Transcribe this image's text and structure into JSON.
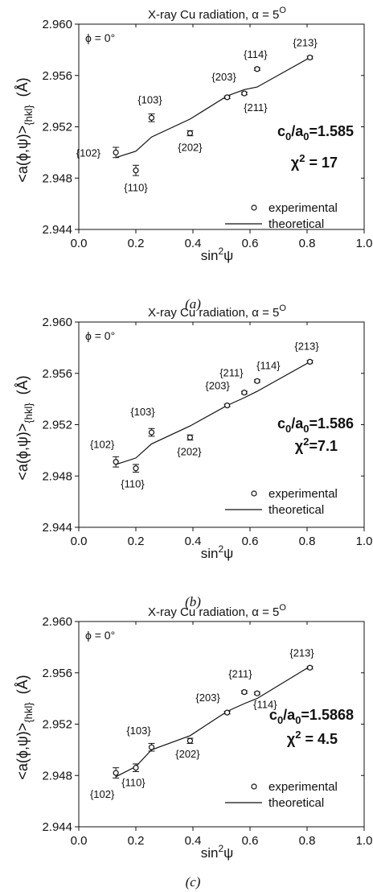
{
  "chart_data": [
    {
      "type": "scatter",
      "panel_caption": "(a)",
      "title": "X-ray Cu radiation, α = 5°",
      "title_main": "X-ray Cu radiation, α = 5",
      "title_sup": "O",
      "phi_label": "ϕ = 0°",
      "xlabel": "sin²ψ",
      "ylabel": "<a(ϕ,ψ)>{hkl} (Å)",
      "xlim": [
        0.0,
        1.0
      ],
      "ylim": [
        2.944,
        2.96
      ],
      "xticks": [
        "0.0",
        "0.2",
        "0.4",
        "0.6",
        "0.8",
        "1.0"
      ],
      "yticks": [
        "2.944",
        "2.948",
        "2.952",
        "2.956",
        "2.960"
      ],
      "ratio_text": "c0/a0=1.585",
      "chi_text": "χ2 = 17",
      "legend": [
        "experimental",
        "theoretical"
      ],
      "series": [
        {
          "name": "experimental",
          "points": [
            {
              "hkl": "{102}",
              "x": 0.13,
              "y": 2.95,
              "err": 0.0004
            },
            {
              "hkl": "{110}",
              "x": 0.2,
              "y": 2.9486,
              "err": 0.0004
            },
            {
              "hkl": "{103}",
              "x": 0.255,
              "y": 2.9527,
              "err": 0.0003
            },
            {
              "hkl": "{202}",
              "x": 0.39,
              "y": 2.9515,
              "err": 0.0002
            },
            {
              "hkl": "{203}",
              "x": 0.52,
              "y": 2.9543,
              "err": 0.0001
            },
            {
              "hkl": "{211}",
              "x": 0.58,
              "y": 2.9546,
              "err": 0.0001
            },
            {
              "hkl": "{114}",
              "x": 0.625,
              "y": 2.9565,
              "err": 0.0001
            },
            {
              "hkl": "{213}",
              "x": 0.81,
              "y": 2.9574,
              "err": 0.0001
            }
          ]
        },
        {
          "name": "theoretical",
          "x": [
            0.13,
            0.2,
            0.255,
            0.39,
            0.52,
            0.58,
            0.625,
            0.81
          ],
          "y": [
            2.9496,
            2.9501,
            2.9512,
            2.9526,
            2.9544,
            2.9549,
            2.9551,
            2.9574
          ]
        }
      ]
    },
    {
      "type": "scatter",
      "panel_caption": "(b)",
      "title": "X-ray Cu radiation, α = 5°",
      "title_main": "X-ray Cu radiation, α = 5",
      "title_sup": "O",
      "phi_label": "ϕ = 0°",
      "xlabel": "sin²ψ",
      "ylabel": "<a(ϕ,ψ)>{hkl} (Å)",
      "xlim": [
        0.0,
        1.0
      ],
      "ylim": [
        2.944,
        2.96
      ],
      "xticks": [
        "0.0",
        "0.2",
        "0.4",
        "0.6",
        "0.8",
        "1.0"
      ],
      "yticks": [
        "2.944",
        "2.948",
        "2.952",
        "2.956",
        "2.960"
      ],
      "ratio_text": "c0/a0=1.586",
      "chi_text": "χ2=7.1",
      "legend": [
        "experimental",
        "theoretical"
      ],
      "series": [
        {
          "name": "experimental",
          "points": [
            {
              "hkl": "{102}",
              "x": 0.13,
              "y": 2.9491,
              "err": 0.0004
            },
            {
              "hkl": "{110}",
              "x": 0.2,
              "y": 2.9486,
              "err": 0.0003
            },
            {
              "hkl": "{103}",
              "x": 0.255,
              "y": 2.9514,
              "err": 0.0003
            },
            {
              "hkl": "{202}",
              "x": 0.39,
              "y": 2.951,
              "err": 0.0002
            },
            {
              "hkl": "{203}",
              "x": 0.52,
              "y": 2.9535,
              "err": 0.0001
            },
            {
              "hkl": "{211}",
              "x": 0.58,
              "y": 2.9545,
              "err": 0.0001
            },
            {
              "hkl": "{114}",
              "x": 0.625,
              "y": 2.9554,
              "err": 0.0001
            },
            {
              "hkl": "{213}",
              "x": 0.81,
              "y": 2.9569,
              "err": 0.0001
            }
          ]
        },
        {
          "name": "theoretical",
          "x": [
            0.13,
            0.2,
            0.255,
            0.39,
            0.52,
            0.58,
            0.625,
            0.81
          ],
          "y": [
            2.9489,
            2.9494,
            2.9505,
            2.9519,
            2.9535,
            2.9541,
            2.9546,
            2.9569
          ]
        }
      ]
    },
    {
      "type": "scatter",
      "panel_caption": "(c)",
      "title": "X-ray Cu radiation, α = 5°",
      "title_main": "X-ray Cu radiation, α = 5",
      "title_sup": "O",
      "phi_label": "ϕ = 0°",
      "xlabel": "sin²ψ",
      "ylabel": "<a(ϕ,ψ)>{hkl} (Å)",
      "xlim": [
        0.0,
        1.0
      ],
      "ylim": [
        2.944,
        2.96
      ],
      "xticks": [
        "0.0",
        "0.2",
        "0.4",
        "0.6",
        "0.8",
        "1.0"
      ],
      "yticks": [
        "2.944",
        "2.948",
        "2.952",
        "2.956",
        "2.960"
      ],
      "ratio_text": "c0/a0=1.5868",
      "chi_text": "χ2 = 4.5",
      "legend": [
        "experimental",
        "theoretical"
      ],
      "series": [
        {
          "name": "experimental",
          "points": [
            {
              "hkl": "{102}",
              "x": 0.13,
              "y": 2.9482,
              "err": 0.0004
            },
            {
              "hkl": "{110}",
              "x": 0.2,
              "y": 2.9486,
              "err": 0.0003
            },
            {
              "hkl": "{103}",
              "x": 0.255,
              "y": 2.9502,
              "err": 0.0003
            },
            {
              "hkl": "{202}",
              "x": 0.39,
              "y": 2.9507,
              "err": 0.0002
            },
            {
              "hkl": "{203}",
              "x": 0.52,
              "y": 2.9529,
              "err": 0.0001
            },
            {
              "hkl": "{211}",
              "x": 0.58,
              "y": 2.9545,
              "err": 0.0001
            },
            {
              "hkl": "{114}",
              "x": 0.625,
              "y": 2.9544,
              "err": 0.0001
            },
            {
              "hkl": "{213}",
              "x": 0.81,
              "y": 2.9564,
              "err": 0.0001
            }
          ]
        },
        {
          "name": "theoretical",
          "x": [
            0.13,
            0.2,
            0.255,
            0.39,
            0.52,
            0.58,
            0.625,
            0.81
          ],
          "y": [
            2.9479,
            2.9487,
            2.95,
            2.9511,
            2.953,
            2.9536,
            2.954,
            2.9565
          ]
        }
      ]
    }
  ]
}
